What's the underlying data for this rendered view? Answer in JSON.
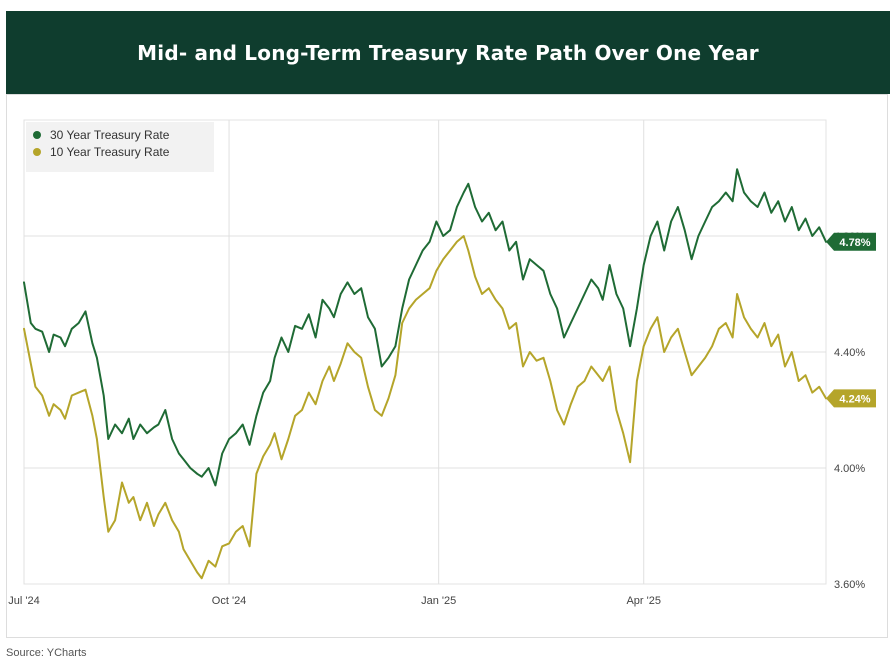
{
  "header": {
    "title": "Mid- and Long-Term Treasury Rate Path Over One Year"
  },
  "footer": {
    "source": "Source: YCharts"
  },
  "colors": {
    "header_bg": "#0f3d2e",
    "series_30y": "#1f6b35",
    "series_10y": "#b5a52a",
    "grid": "#e0e0e0"
  },
  "chart_data": {
    "type": "line",
    "title": "Mid- and Long-Term Treasury Rate Path Over One Year",
    "xlabel": "",
    "ylabel": "",
    "x_ticks": [
      {
        "label": "Jul '24",
        "x": 0
      },
      {
        "label": "Oct '24",
        "x": 90
      },
      {
        "label": "Jan '25",
        "x": 182
      },
      {
        "label": "Apr '25",
        "x": 272
      }
    ],
    "xlim": [
      0,
      352
    ],
    "y_ticks": [
      {
        "label": "3.60%",
        "value": 3.6
      },
      {
        "label": "4.00%",
        "value": 4.0
      },
      {
        "label": "4.40%",
        "value": 4.4
      },
      {
        "label": "4.80%",
        "value": 4.8
      }
    ],
    "ylim": [
      3.6,
      5.2
    ],
    "legend_position": "top-left",
    "series": [
      {
        "name": "30 Year Treasury Rate",
        "color": "#1f6b35",
        "last_label": "4.78%",
        "x": [
          0,
          3,
          5,
          8,
          11,
          13,
          16,
          18,
          21,
          24,
          27,
          30,
          32,
          35,
          37,
          40,
          43,
          46,
          48,
          51,
          54,
          57,
          59,
          62,
          65,
          68,
          70,
          73,
          76,
          78,
          81,
          84,
          87,
          90,
          93,
          96,
          99,
          102,
          105,
          108,
          110,
          113,
          116,
          119,
          122,
          125,
          128,
          131,
          134,
          136,
          139,
          142,
          145,
          148,
          151,
          154,
          157,
          160,
          163,
          166,
          169,
          172,
          175,
          178,
          181,
          184,
          187,
          190,
          193,
          195,
          198,
          201,
          204,
          207,
          210,
          213,
          216,
          219,
          222,
          225,
          228,
          231,
          234,
          237,
          240,
          243,
          246,
          249,
          252,
          254,
          257,
          260,
          263,
          266,
          269,
          272,
          275,
          278,
          281,
          284,
          287,
          290,
          293,
          296,
          299,
          302,
          305,
          308,
          311,
          313,
          316,
          319,
          322,
          325,
          328,
          331,
          334,
          337,
          340,
          343,
          346,
          349,
          352
        ],
        "values": [
          4.64,
          4.5,
          4.48,
          4.47,
          4.4,
          4.46,
          4.45,
          4.42,
          4.48,
          4.5,
          4.54,
          4.43,
          4.38,
          4.25,
          4.1,
          4.15,
          4.12,
          4.17,
          4.1,
          4.15,
          4.12,
          4.14,
          4.15,
          4.2,
          4.1,
          4.05,
          4.03,
          4.0,
          3.98,
          3.97,
          4.0,
          3.94,
          4.05,
          4.1,
          4.12,
          4.15,
          4.08,
          4.18,
          4.26,
          4.3,
          4.38,
          4.45,
          4.4,
          4.49,
          4.48,
          4.53,
          4.45,
          4.58,
          4.55,
          4.52,
          4.6,
          4.64,
          4.6,
          4.62,
          4.52,
          4.48,
          4.35,
          4.38,
          4.42,
          4.55,
          4.65,
          4.7,
          4.75,
          4.78,
          4.85,
          4.8,
          4.82,
          4.9,
          4.95,
          4.98,
          4.9,
          4.85,
          4.88,
          4.82,
          4.85,
          4.75,
          4.78,
          4.65,
          4.72,
          4.7,
          4.68,
          4.6,
          4.55,
          4.45,
          4.5,
          4.55,
          4.6,
          4.65,
          4.62,
          4.58,
          4.7,
          4.6,
          4.55,
          4.42,
          4.55,
          4.7,
          4.8,
          4.85,
          4.75,
          4.85,
          4.9,
          4.82,
          4.72,
          4.8,
          4.85,
          4.9,
          4.92,
          4.95,
          4.92,
          5.03,
          4.95,
          4.92,
          4.9,
          4.95,
          4.88,
          4.92,
          4.85,
          4.9,
          4.82,
          4.86,
          4.8,
          4.83,
          4.78
        ]
      },
      {
        "name": "10 Year Treasury Rate",
        "color": "#b5a52a",
        "last_label": "4.24%",
        "x": [
          0,
          3,
          5,
          8,
          11,
          13,
          16,
          18,
          21,
          24,
          27,
          30,
          32,
          35,
          37,
          40,
          43,
          46,
          48,
          51,
          54,
          57,
          59,
          62,
          65,
          68,
          70,
          73,
          76,
          78,
          81,
          84,
          87,
          90,
          93,
          96,
          99,
          102,
          105,
          108,
          110,
          113,
          116,
          119,
          122,
          125,
          128,
          131,
          134,
          136,
          139,
          142,
          145,
          148,
          151,
          154,
          157,
          160,
          163,
          166,
          169,
          172,
          175,
          178,
          181,
          184,
          187,
          190,
          193,
          195,
          198,
          201,
          204,
          207,
          210,
          213,
          216,
          219,
          222,
          225,
          228,
          231,
          234,
          237,
          240,
          243,
          246,
          249,
          252,
          254,
          257,
          260,
          263,
          266,
          269,
          272,
          275,
          278,
          281,
          284,
          287,
          290,
          293,
          296,
          299,
          302,
          305,
          308,
          311,
          313,
          316,
          319,
          322,
          325,
          328,
          331,
          334,
          337,
          340,
          343,
          346,
          349,
          352
        ],
        "values": [
          4.48,
          4.36,
          4.28,
          4.25,
          4.18,
          4.22,
          4.2,
          4.17,
          4.25,
          4.26,
          4.27,
          4.18,
          4.1,
          3.9,
          3.78,
          3.82,
          3.95,
          3.88,
          3.9,
          3.82,
          3.88,
          3.8,
          3.84,
          3.88,
          3.82,
          3.78,
          3.72,
          3.68,
          3.64,
          3.62,
          3.68,
          3.66,
          3.73,
          3.74,
          3.78,
          3.8,
          3.73,
          3.98,
          4.04,
          4.08,
          4.12,
          4.03,
          4.1,
          4.18,
          4.2,
          4.26,
          4.22,
          4.3,
          4.35,
          4.3,
          4.36,
          4.43,
          4.4,
          4.38,
          4.28,
          4.2,
          4.18,
          4.24,
          4.32,
          4.5,
          4.55,
          4.58,
          4.6,
          4.62,
          4.68,
          4.72,
          4.75,
          4.78,
          4.8,
          4.75,
          4.66,
          4.6,
          4.62,
          4.58,
          4.55,
          4.48,
          4.5,
          4.35,
          4.4,
          4.37,
          4.38,
          4.3,
          4.2,
          4.15,
          4.22,
          4.28,
          4.3,
          4.35,
          4.32,
          4.3,
          4.35,
          4.2,
          4.12,
          4.02,
          4.3,
          4.42,
          4.48,
          4.52,
          4.4,
          4.45,
          4.48,
          4.4,
          4.32,
          4.35,
          4.38,
          4.42,
          4.48,
          4.5,
          4.45,
          4.6,
          4.52,
          4.48,
          4.45,
          4.5,
          4.42,
          4.46,
          4.35,
          4.4,
          4.3,
          4.32,
          4.26,
          4.28,
          4.24
        ]
      }
    ]
  }
}
